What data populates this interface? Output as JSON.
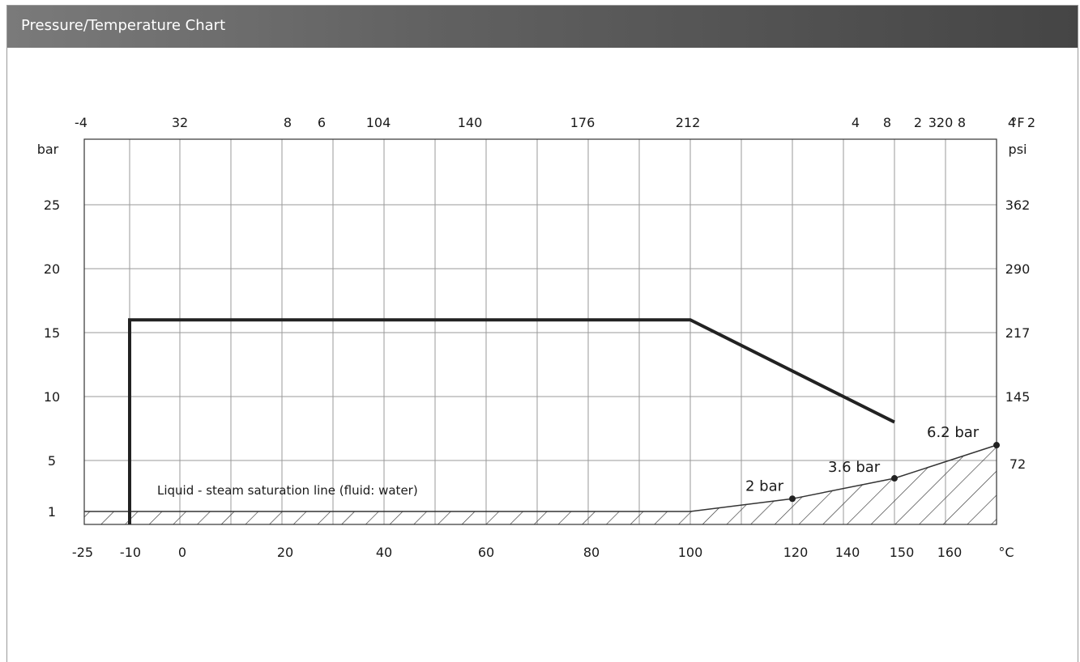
{
  "panel": {
    "title": "Pressure/Temperature Chart"
  },
  "chart_data": {
    "type": "line",
    "title": "",
    "xlabel": "°C",
    "ylabel": "bar",
    "ylabel_right": "psi",
    "xlabel_top": "°F",
    "grid": true,
    "xlim": [
      -25,
      170
    ],
    "ylim": [
      0,
      30
    ],
    "x_ticks": [
      {
        "value": -25,
        "label": "-25"
      },
      {
        "value": -10,
        "label": "-10"
      },
      {
        "value": 0,
        "label": "0"
      },
      {
        "value": 20,
        "label": "20"
      },
      {
        "value": 40,
        "label": "40"
      },
      {
        "value": 60,
        "label": "60"
      },
      {
        "value": 80,
        "label": "80"
      },
      {
        "value": 100,
        "label": "100"
      },
      {
        "value": 120,
        "label": "120"
      },
      {
        "value": 140,
        "label": "140"
      },
      {
        "value": 150,
        "label": "150"
      },
      {
        "value": 160,
        "label": "160"
      },
      {
        "value": 170,
        "label": "°C"
      }
    ],
    "x_ticks_top": [
      {
        "value": -25,
        "label": "-4"
      },
      {
        "value": 0,
        "label": "32"
      },
      {
        "value": 20,
        "label": "8"
      },
      {
        "value": 27,
        "label": "6"
      },
      {
        "value": 40,
        "label": "104"
      },
      {
        "value": 60,
        "label": "140"
      },
      {
        "value": 80,
        "label": "176"
      },
      {
        "value": 100,
        "label": "212"
      },
      {
        "value": 140,
        "label": "4"
      },
      {
        "value": 148,
        "label": "8"
      },
      {
        "value": 154,
        "label": "2"
      },
      {
        "value": 160,
        "label": "320"
      },
      {
        "value": 163,
        "label": "8"
      },
      {
        "value": 170,
        "label": "4"
      },
      {
        "value": 171,
        "label": "°F"
      },
      {
        "value": 178,
        "label": "2"
      }
    ],
    "y_ticks_left": [
      {
        "value": 30,
        "label": "bar"
      },
      {
        "value": 25,
        "label": "25"
      },
      {
        "value": 20,
        "label": "20"
      },
      {
        "value": 15,
        "label": "15"
      },
      {
        "value": 10,
        "label": "10"
      },
      {
        "value": 5,
        "label": "5"
      },
      {
        "value": 1,
        "label": "1"
      }
    ],
    "y_ticks_right": [
      {
        "value": 30,
        "label": "psi"
      },
      {
        "value": 25,
        "label": "362"
      },
      {
        "value": 20,
        "label": "290"
      },
      {
        "value": 15,
        "label": "217"
      },
      {
        "value": 10,
        "label": "145"
      },
      {
        "value": 5,
        "label": "72"
      }
    ],
    "series": [
      {
        "values": [
          [
            -10,
            0
          ],
          [
            -10,
            16
          ],
          [
            100,
            16
          ],
          [
            150,
            8
          ]
        ]
      },
      {
        "name": "Liquid - steam saturation line (fluid: water)",
        "values": [
          [
            -25,
            1
          ],
          [
            100,
            1
          ],
          [
            120,
            2
          ],
          [
            150,
            3.6
          ],
          [
            170,
            6.2
          ]
        ]
      }
    ],
    "annotations": [
      {
        "x": 120,
        "y": 2,
        "label": "2 bar"
      },
      {
        "x": 150,
        "y": 3.6,
        "label": "3.6 bar"
      },
      {
        "x": 170,
        "y": 6.2,
        "label": "6.2 bar"
      }
    ],
    "note": "Liquid - steam saturation line (fluid: water)"
  }
}
